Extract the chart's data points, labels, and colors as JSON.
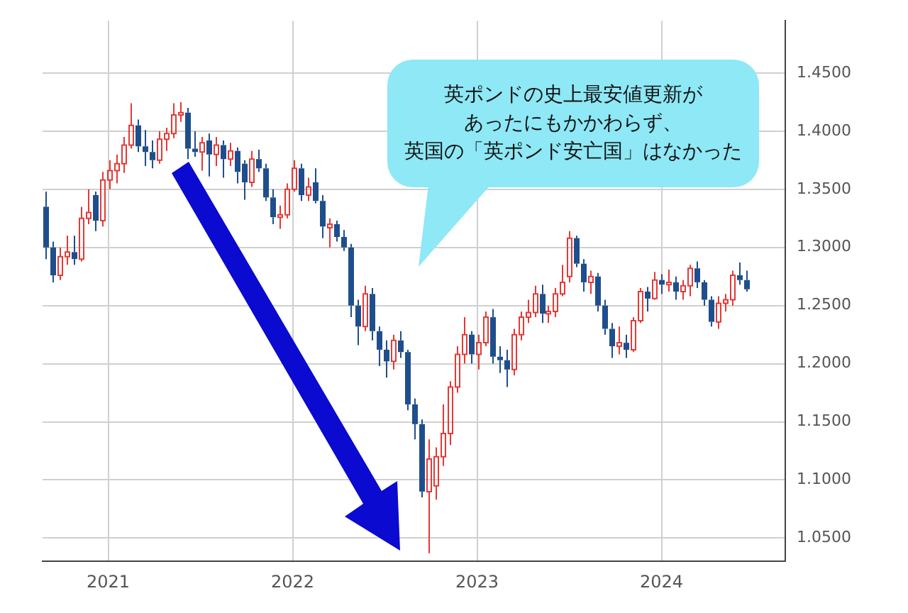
{
  "chart_data": {
    "type": "candlestick",
    "annotations": [
      "英ポンドの史上最安値更新が",
      "あったにもかかわらず、",
      "英国の「英ポンド安亡国」はなかった"
    ],
    "x": [
      "2020-08-31",
      "2020-09-14",
      "2020-09-28",
      "2020-10-12",
      "2020-10-26",
      "2020-11-09",
      "2020-11-23",
      "2020-12-07",
      "2020-12-21",
      "2021-01-04",
      "2021-01-18",
      "2021-02-01",
      "2021-02-15",
      "2021-03-01",
      "2021-03-15",
      "2021-03-29",
      "2021-04-12",
      "2021-04-26",
      "2021-05-10",
      "2021-05-24",
      "2021-06-07",
      "2021-06-21",
      "2021-07-05",
      "2021-07-19",
      "2021-08-02",
      "2021-08-16",
      "2021-08-30",
      "2021-09-13",
      "2021-09-27",
      "2021-10-11",
      "2021-10-25",
      "2021-11-08",
      "2021-11-22",
      "2021-12-06",
      "2021-12-20",
      "2022-01-03",
      "2022-01-17",
      "2022-01-31",
      "2022-02-14",
      "2022-02-28",
      "2022-03-14",
      "2022-03-28",
      "2022-04-11",
      "2022-04-25",
      "2022-05-09",
      "2022-05-23",
      "2022-06-06",
      "2022-06-20",
      "2022-07-04",
      "2022-07-18",
      "2022-08-01",
      "2022-08-15",
      "2022-08-29",
      "2022-09-12",
      "2022-09-26",
      "2022-10-10",
      "2022-10-24",
      "2022-11-07",
      "2022-11-21",
      "2022-12-05",
      "2022-12-19",
      "2023-01-02",
      "2023-01-16",
      "2023-01-30",
      "2023-02-13",
      "2023-02-27",
      "2023-03-13",
      "2023-03-27",
      "2023-04-10",
      "2023-04-24",
      "2023-05-08",
      "2023-05-22",
      "2023-06-05",
      "2023-06-19",
      "2023-07-03",
      "2023-07-17",
      "2023-07-31",
      "2023-08-14",
      "2023-08-28",
      "2023-09-11",
      "2023-09-25",
      "2023-10-09",
      "2023-10-23",
      "2023-11-06",
      "2023-11-20",
      "2023-12-04",
      "2023-12-18",
      "2024-01-01",
      "2024-01-15",
      "2024-01-29",
      "2024-02-12",
      "2024-02-26",
      "2024-03-11",
      "2024-03-25",
      "2024-04-08",
      "2024-04-22",
      "2024-05-06",
      "2024-05-20",
      "2024-06-03",
      "2024-06-17"
    ],
    "ohlc": [
      [
        1.335,
        1.348,
        1.29,
        1.3
      ],
      [
        1.3,
        1.305,
        1.27,
        1.276
      ],
      [
        1.276,
        1.3,
        1.272,
        1.292
      ],
      [
        1.292,
        1.31,
        1.285,
        1.296
      ],
      [
        1.296,
        1.31,
        1.285,
        1.29
      ],
      [
        1.29,
        1.335,
        1.288,
        1.325
      ],
      [
        1.325,
        1.35,
        1.32,
        1.33
      ],
      [
        1.345,
        1.348,
        1.314,
        1.323
      ],
      [
        1.323,
        1.365,
        1.318,
        1.358
      ],
      [
        1.358,
        1.375,
        1.35,
        1.366
      ],
      [
        1.366,
        1.38,
        1.355,
        1.372
      ],
      [
        1.372,
        1.395,
        1.364,
        1.388
      ],
      [
        1.388,
        1.424,
        1.385,
        1.405
      ],
      [
        1.405,
        1.41,
        1.382,
        1.387
      ],
      [
        1.387,
        1.401,
        1.37,
        1.382
      ],
      [
        1.382,
        1.392,
        1.368,
        1.375
      ],
      [
        1.375,
        1.4,
        1.372,
        1.393
      ],
      [
        1.393,
        1.403,
        1.383,
        1.398
      ],
      [
        1.398,
        1.424,
        1.394,
        1.414
      ],
      [
        1.414,
        1.425,
        1.408,
        1.416
      ],
      [
        1.416,
        1.42,
        1.376,
        1.385
      ],
      [
        1.385,
        1.4,
        1.378,
        1.382
      ],
      [
        1.382,
        1.395,
        1.366,
        1.39
      ],
      [
        1.392,
        1.398,
        1.361,
        1.38
      ],
      [
        1.38,
        1.395,
        1.37,
        1.388
      ],
      [
        1.388,
        1.392,
        1.36,
        1.376
      ],
      [
        1.376,
        1.39,
        1.37,
        1.383
      ],
      [
        1.383,
        1.386,
        1.355,
        1.365
      ],
      [
        1.372,
        1.375,
        1.341,
        1.356
      ],
      [
        1.356,
        1.383,
        1.352,
        1.376
      ],
      [
        1.376,
        1.384,
        1.365,
        1.368
      ],
      [
        1.368,
        1.372,
        1.34,
        1.343
      ],
      [
        1.343,
        1.35,
        1.32,
        1.326
      ],
      [
        1.326,
        1.336,
        1.316,
        1.328
      ],
      [
        1.328,
        1.355,
        1.325,
        1.35
      ],
      [
        1.35,
        1.375,
        1.348,
        1.368
      ],
      [
        1.368,
        1.372,
        1.34,
        1.345
      ],
      [
        1.345,
        1.36,
        1.34,
        1.352
      ],
      [
        1.356,
        1.368,
        1.338,
        1.34
      ],
      [
        1.34,
        1.345,
        1.308,
        1.318
      ],
      [
        1.317,
        1.325,
        1.3,
        1.32
      ],
      [
        1.32,
        1.323,
        1.305,
        1.309
      ],
      [
        1.309,
        1.315,
        1.297,
        1.3
      ],
      [
        1.3,
        1.303,
        1.24,
        1.25
      ],
      [
        1.25,
        1.255,
        1.216,
        1.232
      ],
      [
        1.232,
        1.267,
        1.228,
        1.26
      ],
      [
        1.26,
        1.265,
        1.22,
        1.228
      ],
      [
        1.228,
        1.232,
        1.198,
        1.212
      ],
      [
        1.212,
        1.22,
        1.188,
        1.202
      ],
      [
        1.202,
        1.225,
        1.195,
        1.22
      ],
      [
        1.22,
        1.228,
        1.205,
        1.21
      ],
      [
        1.21,
        1.212,
        1.16,
        1.165
      ],
      [
        1.165,
        1.17,
        1.135,
        1.148
      ],
      [
        1.148,
        1.152,
        1.085,
        1.09
      ],
      [
        1.09,
        1.135,
        1.037,
        1.118
      ],
      [
        1.095,
        1.128,
        1.083,
        1.12
      ],
      [
        1.12,
        1.165,
        1.112,
        1.14
      ],
      [
        1.14,
        1.185,
        1.13,
        1.18
      ],
      [
        1.18,
        1.215,
        1.175,
        1.208
      ],
      [
        1.208,
        1.24,
        1.2,
        1.225
      ],
      [
        1.225,
        1.228,
        1.2,
        1.208
      ],
      [
        1.208,
        1.225,
        1.195,
        1.218
      ],
      [
        1.218,
        1.245,
        1.215,
        1.24
      ],
      [
        1.24,
        1.247,
        1.2,
        1.206
      ],
      [
        1.206,
        1.215,
        1.192,
        1.203
      ],
      [
        1.203,
        1.212,
        1.18,
        1.195
      ],
      [
        1.195,
        1.23,
        1.19,
        1.225
      ],
      [
        1.225,
        1.245,
        1.22,
        1.24
      ],
      [
        1.24,
        1.255,
        1.235,
        1.244
      ],
      [
        1.244,
        1.267,
        1.24,
        1.26
      ],
      [
        1.26,
        1.268,
        1.235,
        1.243
      ],
      [
        1.243,
        1.25,
        1.235,
        1.245
      ],
      [
        1.245,
        1.265,
        1.24,
        1.26
      ],
      [
        1.26,
        1.285,
        1.258,
        1.27
      ],
      [
        1.275,
        1.314,
        1.27,
        1.308
      ],
      [
        1.308,
        1.31,
        1.283,
        1.286
      ],
      [
        1.286,
        1.29,
        1.262,
        1.27
      ],
      [
        1.27,
        1.28,
        1.26,
        1.275
      ],
      [
        1.275,
        1.278,
        1.245,
        1.25
      ],
      [
        1.25,
        1.255,
        1.225,
        1.23
      ],
      [
        1.23,
        1.235,
        1.205,
        1.215
      ],
      [
        1.215,
        1.232,
        1.208,
        1.218
      ],
      [
        1.218,
        1.225,
        1.205,
        1.212
      ],
      [
        1.212,
        1.24,
        1.21,
        1.237
      ],
      [
        1.237,
        1.265,
        1.235,
        1.262
      ],
      [
        1.262,
        1.266,
        1.245,
        1.256
      ],
      [
        1.256,
        1.279,
        1.255,
        1.272
      ],
      [
        1.272,
        1.277,
        1.26,
        1.268
      ],
      [
        1.268,
        1.281,
        1.262,
        1.27
      ],
      [
        1.27,
        1.275,
        1.255,
        1.262
      ],
      [
        1.262,
        1.272,
        1.255,
        1.267
      ],
      [
        1.267,
        1.285,
        1.258,
        1.282
      ],
      [
        1.282,
        1.288,
        1.265,
        1.27
      ],
      [
        1.27,
        1.272,
        1.25,
        1.255
      ],
      [
        1.255,
        1.258,
        1.232,
        1.236
      ],
      [
        1.236,
        1.258,
        1.23,
        1.252
      ],
      [
        1.252,
        1.26,
        1.245,
        1.255
      ],
      [
        1.255,
        1.28,
        1.25,
        1.276
      ],
      [
        1.276,
        1.287,
        1.268,
        1.272
      ],
      [
        1.272,
        1.28,
        1.262,
        1.264
      ]
    ],
    "colors": [
      "#1f4e8c",
      "#1f4e8c",
      "#e53935",
      "#e53935",
      "#1f4e8c",
      "#e53935",
      "#e53935",
      "#1f4e8c",
      "#e53935",
      "#e53935",
      "#e53935",
      "#e53935",
      "#e53935",
      "#1f4e8c",
      "#1f4e8c",
      "#1f4e8c",
      "#e53935",
      "#e53935",
      "#e53935",
      "#e53935",
      "#1f4e8c",
      "#1f4e8c",
      "#e53935",
      "#1f4e8c",
      "#e53935",
      "#1f4e8c",
      "#e53935",
      "#1f4e8c",
      "#1f4e8c",
      "#e53935",
      "#1f4e8c",
      "#1f4e8c",
      "#1f4e8c",
      "#e53935",
      "#e53935",
      "#e53935",
      "#1f4e8c",
      "#e53935",
      "#1f4e8c",
      "#1f4e8c",
      "#e53935",
      "#1f4e8c",
      "#1f4e8c",
      "#1f4e8c",
      "#1f4e8c",
      "#e53935",
      "#1f4e8c",
      "#1f4e8c",
      "#1f4e8c",
      "#e53935",
      "#1f4e8c",
      "#1f4e8c",
      "#1f4e8c",
      "#1f4e8c",
      "#e53935",
      "#e53935",
      "#e53935",
      "#e53935",
      "#e53935",
      "#e53935",
      "#1f4e8c",
      "#e53935",
      "#e53935",
      "#1f4e8c",
      "#1f4e8c",
      "#1f4e8c",
      "#e53935",
      "#e53935",
      "#e53935",
      "#e53935",
      "#1f4e8c",
      "#e53935",
      "#e53935",
      "#e53935",
      "#e53935",
      "#1f4e8c",
      "#1f4e8c",
      "#e53935",
      "#1f4e8c",
      "#1f4e8c",
      "#1f4e8c",
      "#e53935",
      "#1f4e8c",
      "#e53935",
      "#e53935",
      "#1f4e8c",
      "#e53935",
      "#1f4e8c",
      "#e53935",
      "#1f4e8c",
      "#e53935",
      "#e53935",
      "#1f4e8c",
      "#1f4e8c",
      "#1f4e8c",
      "#e53935",
      "#e53935",
      "#e53935",
      "#1f4e8c",
      "#1f4e8c"
    ],
    "xlim": [
      "2020-08-24",
      "2024-09-02"
    ],
    "xticks": [
      "2021",
      "2022",
      "2023",
      "2024"
    ],
    "ylim": [
      1.03,
      1.495
    ],
    "yticks": [
      {
        "value": 1.05,
        "label": "1.0500"
      },
      {
        "value": 1.1,
        "label": "1.1000"
      },
      {
        "value": 1.15,
        "label": "1.1500"
      },
      {
        "value": 1.2,
        "label": "1.2000"
      },
      {
        "value": 1.25,
        "label": "1.2500"
      },
      {
        "value": 1.3,
        "label": "1.3000"
      },
      {
        "value": 1.35,
        "label": "1.3500"
      },
      {
        "value": 1.4,
        "label": "1.4000"
      },
      {
        "value": 1.45,
        "label": "1.4500"
      }
    ],
    "grid": true
  }
}
